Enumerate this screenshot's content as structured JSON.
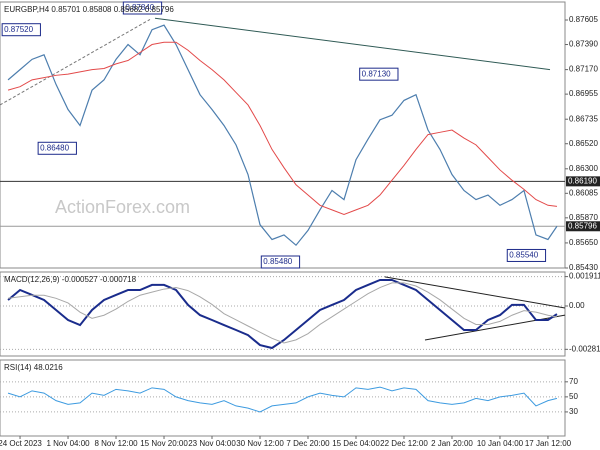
{
  "chart_data": [
    {
      "type": "line",
      "title": "EURGBP,H4  0.85701 0.85808 0.85682 0.85796",
      "watermark": "ActionForex.com",
      "x": [
        -1,
        0,
        1,
        2,
        3,
        4,
        5,
        6,
        7,
        8,
        9,
        10,
        11,
        12,
        13,
        14,
        15,
        16,
        17,
        18,
        19,
        20,
        21,
        22,
        23,
        24,
        25,
        26,
        27,
        28,
        29,
        30,
        31,
        32,
        33,
        34,
        35,
        36,
        37,
        38,
        39,
        40,
        41,
        42,
        43,
        44,
        44.75
      ],
      "series": [
        {
          "color": "#4d7eae",
          "values": [
            0.8708,
            0.8717,
            0.8726,
            0.873,
            0.8704,
            0.8682,
            0.8668,
            0.8699,
            0.8708,
            0.8726,
            0.8739,
            0.873,
            0.8752,
            0.8756,
            0.8739,
            0.8717,
            0.8695,
            0.8682,
            0.8668,
            0.8651,
            0.8625,
            0.8581,
            0.8568,
            0.8572,
            0.8563,
            0.8576,
            0.8594,
            0.8611,
            0.8603,
            0.8638,
            0.8656,
            0.8673,
            0.8677,
            0.869,
            0.8695,
            0.8664,
            0.8647,
            0.8625,
            0.8611,
            0.8603,
            0.8607,
            0.8598,
            0.8603,
            0.8611,
            0.8572,
            0.8568,
            0.85796
          ]
        },
        {
          "color": "#e34a4a",
          "values": [
            0.8699,
            0.8702,
            0.8708,
            0.871,
            0.8712,
            0.8713,
            0.8715,
            0.8717,
            0.8718,
            0.8722,
            0.8725,
            0.8732,
            0.8739,
            0.8741,
            0.8741,
            0.8734,
            0.8725,
            0.8717,
            0.8708,
            0.8697,
            0.8686,
            0.8668,
            0.8647,
            0.8631,
            0.8616,
            0.8607,
            0.8598,
            0.8594,
            0.859,
            0.8594,
            0.8598,
            0.8607,
            0.862,
            0.8633,
            0.8647,
            0.866,
            0.8662,
            0.8664,
            0.8657,
            0.8651,
            0.864,
            0.8629,
            0.862,
            0.8612,
            0.8603,
            0.8598,
            0.8597
          ]
        }
      ],
      "xlim": [
        -1.67,
        45.42
      ],
      "ylim": [
        0.8543,
        0.87763
      ],
      "yticks": [
        0.87605,
        {
          "value": 0.8739,
          "label": "0.87390"
        },
        {
          "value": 0.8717,
          "label": "0.87170"
        },
        0.86955,
        0.86735,
        {
          "value": 0.8652,
          "label": "0.86520"
        },
        {
          "value": 0.863,
          "label": "0.86300"
        },
        0.86085,
        {
          "value": 0.8587,
          "label": "0.85870"
        },
        {
          "value": 0.8565,
          "label": "0.85650"
        },
        {
          "value": 0.8543,
          "label": "0.85430"
        }
      ],
      "grid": false,
      "annotations": [
        {
          "x": 1.7,
          "value": 0.8752,
          "label": "0.87520"
        },
        {
          "x": 11.8,
          "value": 0.8784,
          "label": "0.87840"
        },
        {
          "x": 4.7,
          "value": 0.8648,
          "label": "0.86480"
        },
        {
          "x": 31.5,
          "value": 0.8713,
          "label": "0.87130"
        },
        {
          "x": 23.3,
          "value": 0.8548,
          "label": "0.85480"
        },
        {
          "x": 43.8,
          "value": 0.8554,
          "label": "0.85540"
        }
      ],
      "hlines": [
        {
          "value": 0.8619,
          "label": "0.86190",
          "color": "#333333"
        },
        {
          "value": 0.85796,
          "label": "0.85796",
          "color": "#999999"
        }
      ],
      "trendlines": [
        {
          "x": [
            11.25,
            44.17
          ],
          "y": [
            0.8762,
            0.8717
          ],
          "color": "#2f5a55",
          "dashed": false
        },
        {
          "x": [
            -1.67,
            10.83
          ],
          "y": [
            0.8686,
            0.8761
          ],
          "color": "#777777",
          "dashed": true
        }
      ]
    },
    {
      "type": "line",
      "title": "MACD(12,26,9) -0.000527 -0.000718",
      "x": [
        -1,
        0,
        1,
        2,
        3,
        4,
        5,
        6,
        7,
        8,
        9,
        10,
        11,
        12,
        13,
        14,
        15,
        16,
        17,
        18,
        19,
        20,
        21,
        22,
        23,
        24,
        25,
        26,
        27,
        28,
        29,
        30,
        31,
        32,
        33,
        34,
        35,
        36,
        37,
        38,
        39,
        40,
        41,
        42,
        43,
        44,
        44.75
      ],
      "series": [
        {
          "color": "#1a2c8c",
          "values": [
            0.00039,
            0.00104,
            0.00072,
            0.00039,
            -0.00026,
            -0.00091,
            -0.00124,
            -0.00026,
            0.00039,
            0.00072,
            0.00104,
            0.00104,
            0.00137,
            0.00137,
            0.00104,
            7e-05,
            -0.00059,
            -0.00091,
            -0.00124,
            -0.00156,
            -0.00189,
            -0.00254,
            -0.00273,
            -0.00221,
            -0.00156,
            -0.00091,
            -0.00026,
            7e-05,
            0.00039,
            0.00104,
            0.00137,
            0.00169,
            0.00169,
            0.00137,
            0.00104,
            0.00039,
            -0.00026,
            -0.00091,
            -0.00156,
            -0.00156,
            -0.00091,
            -0.00059,
            7e-05,
            7e-05,
            -0.00091,
            -0.00091,
            -0.000527
          ]
        },
        {
          "color": "#a8a8a8",
          "values": [
            0.0005,
            0.0006,
            0.0007,
            0.0007,
            0.0005,
            0.0002,
            -0.0004,
            -0.0008,
            -0.0006,
            -0.0002,
            0.0003,
            0.0007,
            0.0009,
            0.0011,
            0.0012,
            0.001,
            0.0006,
            0.0001,
            -0.0005,
            -0.0009,
            -0.0013,
            -0.0017,
            -0.0021,
            -0.0024,
            -0.0022,
            -0.0018,
            -0.0012,
            -0.0007,
            -0.0002,
            0.0003,
            0.0008,
            0.0012,
            0.0015,
            0.0015,
            0.0013,
            0.0009,
            0.0004,
            -0.0002,
            -0.0008,
            -0.0012,
            -0.0012,
            -0.001,
            -0.0006,
            -0.0003,
            -0.0004,
            -0.0006,
            -0.000718
          ]
        }
      ],
      "xlim": [
        -1.67,
        45.42
      ],
      "ylim": [
        -0.00325,
        0.00221
      ],
      "yticks": [
        0.001911,
        {
          "value": 0,
          "label": "0.00"
        },
        -0.002816
      ],
      "grid": true,
      "trendlines": [
        {
          "x": [
            30.4,
            45.42
          ],
          "y": [
            0.00189,
            -0.00013
          ],
          "color": "#222222",
          "dashed": false
        },
        {
          "x": [
            33.75,
            45.42
          ],
          "y": [
            -0.00221,
            -0.00059
          ],
          "color": "#222222",
          "dashed": false
        }
      ]
    },
    {
      "type": "line",
      "title": "RSI(14) 48.0216",
      "x": [
        -1,
        0,
        1,
        2,
        3,
        4,
        5,
        6,
        7,
        8,
        9,
        10,
        11,
        12,
        13,
        14,
        15,
        16,
        17,
        18,
        19,
        20,
        21,
        22,
        23,
        24,
        25,
        26,
        27,
        28,
        29,
        30,
        31,
        32,
        33,
        34,
        35,
        36,
        37,
        38,
        39,
        40,
        41,
        42,
        43,
        44,
        44.75
      ],
      "series": [
        {
          "color": "#3d9be0",
          "values": [
            55,
            50,
            58,
            55,
            45,
            40,
            42,
            55,
            52,
            60,
            58,
            55,
            62,
            60,
            50,
            45,
            42,
            40,
            45,
            38,
            35,
            30,
            38,
            40,
            42,
            50,
            55,
            52,
            50,
            62,
            60,
            63,
            58,
            62,
            60,
            45,
            42,
            40,
            42,
            48,
            45,
            50,
            52,
            55,
            38,
            45,
            48.0216
          ]
        }
      ],
      "xlim": [
        -1.67,
        45.42
      ],
      "ylim": [
        -2,
        99
      ],
      "yticks": [
        70,
        50,
        30
      ],
      "grid": true,
      "xticks": [
        {
          "value": 0,
          "label": "24 Oct 2023"
        },
        {
          "value": 4,
          "label": "1 Nov 04:00"
        },
        {
          "value": 8,
          "label": "8 Nov 12:00"
        },
        {
          "value": 12,
          "label": "15 Nov 20:00"
        },
        {
          "value": 16,
          "label": "23 Nov 04:00"
        },
        {
          "value": 20,
          "label": "30 Nov 12:00"
        },
        {
          "value": 24,
          "label": "7 Dec 20:00"
        },
        {
          "value": 28,
          "label": "15 Dec 04:00"
        },
        {
          "value": 32,
          "label": "22 Dec 12:00"
        },
        {
          "value": 36,
          "label": "2 Jan 20:00"
        },
        {
          "value": 40,
          "label": "10 Jan 04:00"
        },
        {
          "value": 44,
          "label": "17 Jan 12:00"
        }
      ]
    }
  ]
}
